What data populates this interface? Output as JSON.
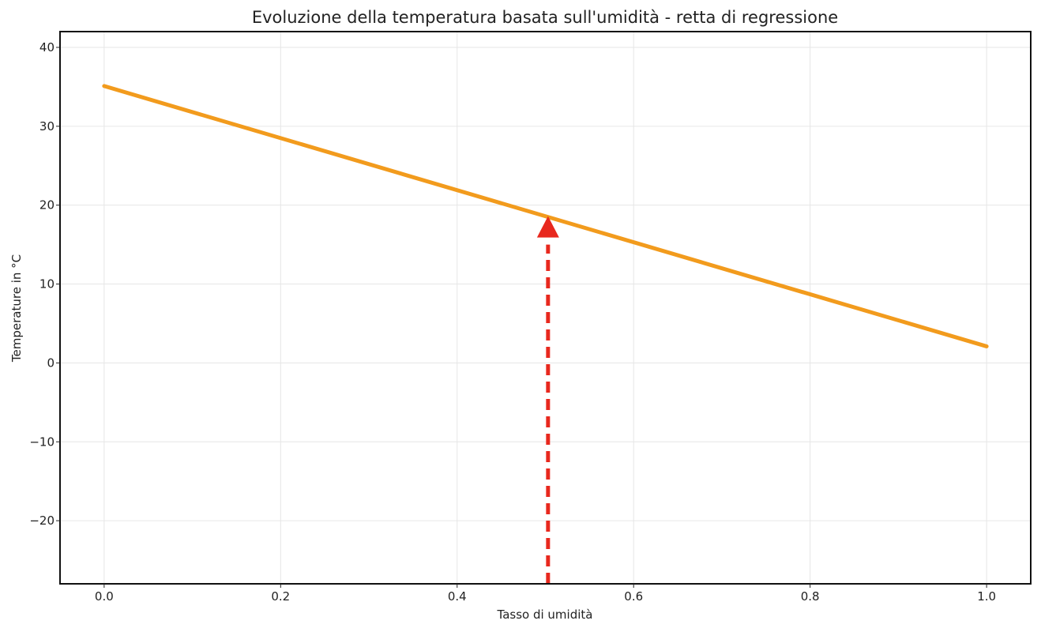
{
  "chart_data": {
    "type": "line",
    "title": "Evoluzione della temperatura basata sull'umidità - retta di regressione",
    "xlabel": "Tasso di umidità",
    "ylabel": "Temperature in °C",
    "xlim": [
      -0.05,
      1.05
    ],
    "ylim": [
      -28,
      42
    ],
    "xticks": [
      0.0,
      0.2,
      0.4,
      0.6,
      0.8,
      1.0
    ],
    "xtick_labels": [
      "0.0",
      "0.2",
      "0.4",
      "0.6",
      "0.8",
      "1.0"
    ],
    "yticks": [
      -20,
      -10,
      0,
      10,
      20,
      30,
      40
    ],
    "ytick_labels": [
      "−20",
      "−10",
      "0",
      "10",
      "20",
      "30",
      "40"
    ],
    "grid": true,
    "series": [
      {
        "x": [
          0.0,
          1.0
        ],
        "y": [
          35.1,
          2.1
        ],
        "color": "#f29b1d"
      }
    ],
    "annotations": [
      {
        "type": "arrow",
        "style": "dashed",
        "x": 0.503,
        "y_from": -28,
        "y_to": 18.6,
        "color": "#e8281e"
      }
    ]
  }
}
